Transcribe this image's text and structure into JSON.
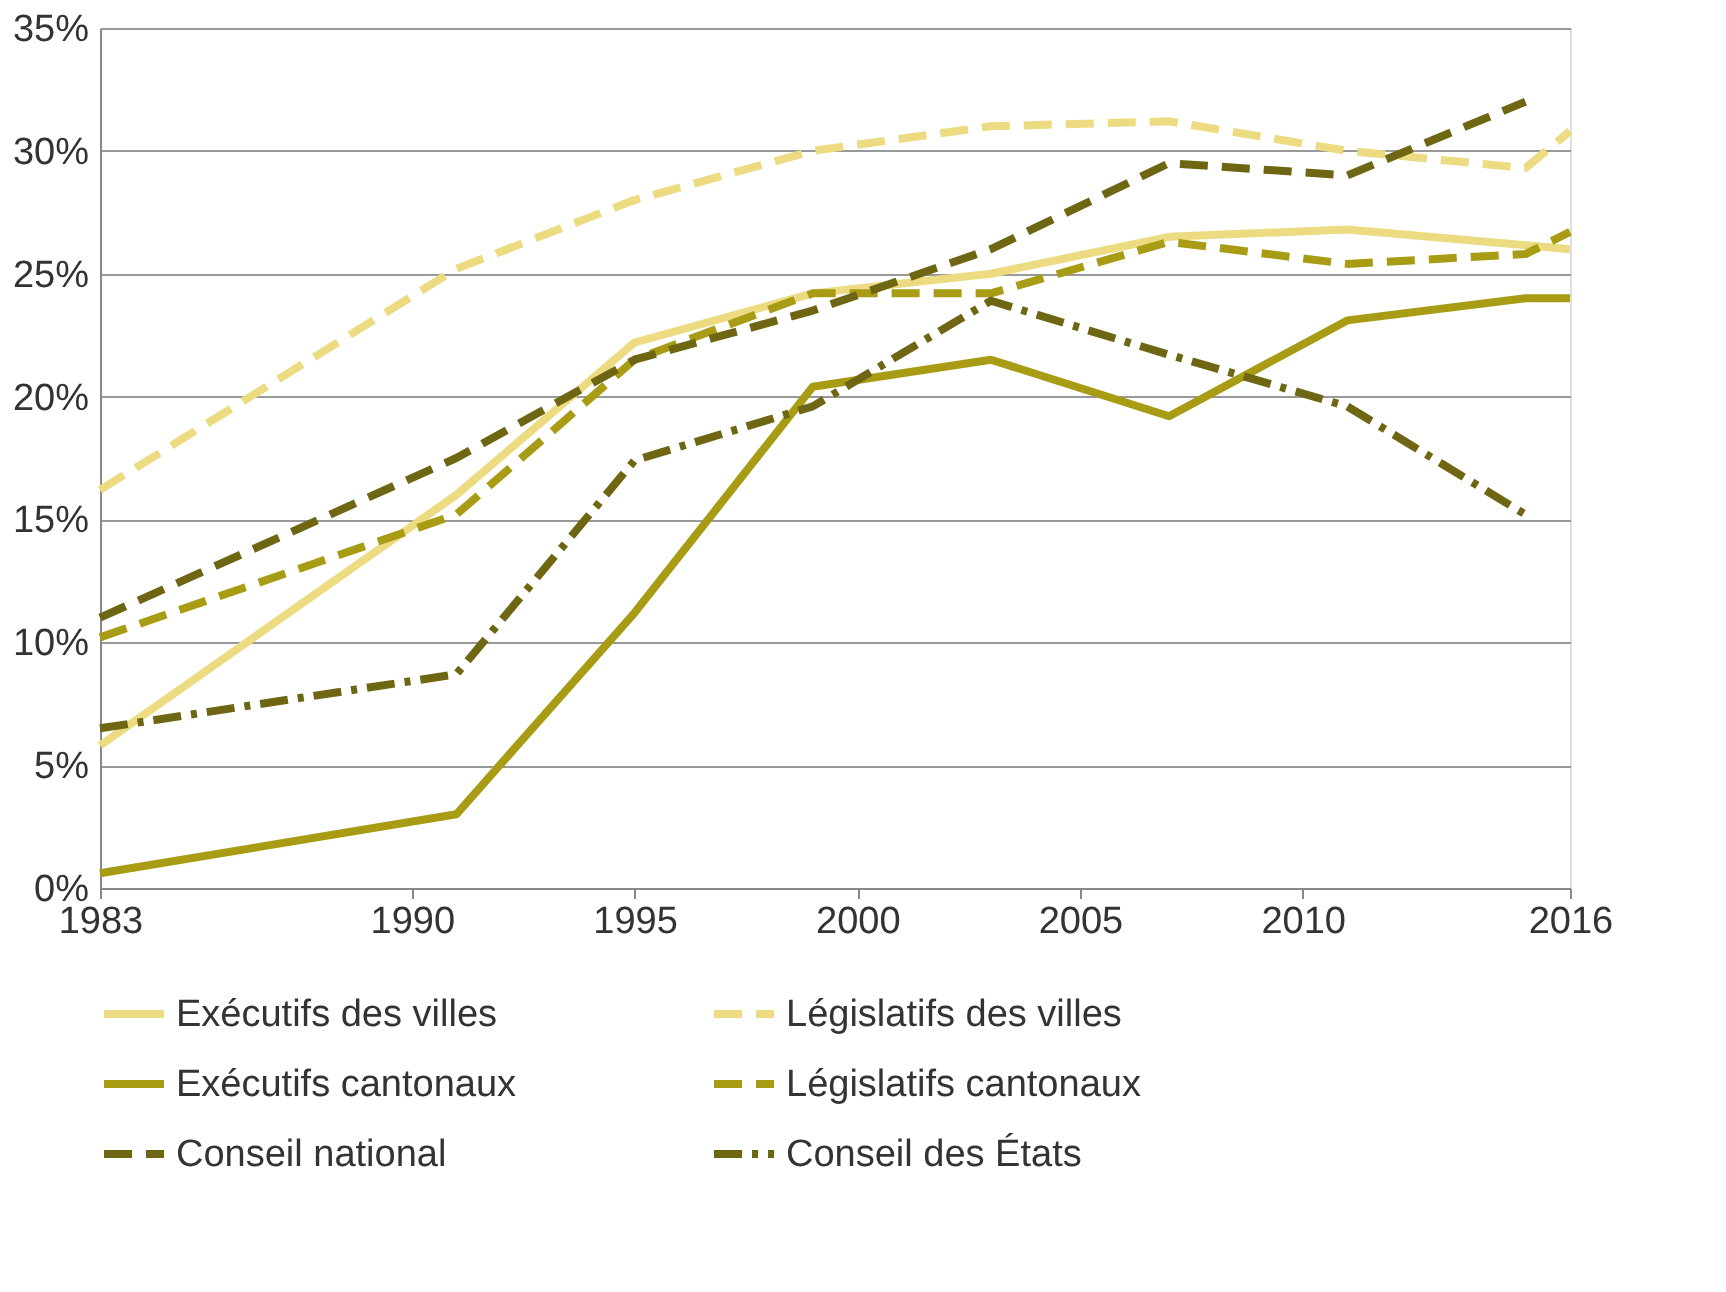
{
  "chart_data": {
    "type": "line",
    "xlim": [
      1983,
      2016
    ],
    "xticks": [
      1983,
      1990,
      1995,
      2000,
      2005,
      2010,
      2016
    ],
    "ylim": [
      0,
      35
    ],
    "yticks": [
      {
        "value": 0,
        "label": "0%"
      },
      {
        "value": 5,
        "label": "5%"
      },
      {
        "value": 10,
        "label": "10%"
      },
      {
        "value": 15,
        "label": "15%"
      },
      {
        "value": 20,
        "label": "20%"
      },
      {
        "value": 25,
        "label": "25%"
      },
      {
        "value": 30,
        "label": "30%"
      },
      {
        "value": 35,
        "label": "35%"
      }
    ],
    "grid": "y",
    "legend": "bottom",
    "marker": "none",
    "series": [
      {
        "name": "Exécutifs des villes",
        "color": "#ecdb80",
        "line_style": "solid",
        "x": [
          1983,
          1991,
          1995,
          1999,
          2003,
          2007,
          2011,
          2016
        ],
        "values": [
          5.8,
          16,
          22.2,
          24.2,
          25,
          26.5,
          26.8,
          26
        ]
      },
      {
        "name": "Législatifs des villes",
        "color": "#ecdb80",
        "line_style": "dashed",
        "x": [
          1983,
          1991,
          1995,
          1999,
          2003,
          2007,
          2011,
          2015,
          2016
        ],
        "values": [
          16.2,
          25.2,
          28,
          30,
          31,
          31.2,
          30,
          29.3,
          30.8
        ]
      },
      {
        "name": "Exécutifs cantonaux",
        "color": "#a89c14",
        "line_style": "solid",
        "x": [
          1983,
          1991,
          1995,
          1999,
          2003,
          2007,
          2011,
          2015,
          2016
        ],
        "values": [
          0.6,
          3,
          11.2,
          20.4,
          21.5,
          19.2,
          23.1,
          24,
          24
        ]
      },
      {
        "name": "Législatifs cantonaux",
        "color": "#a89c14",
        "line_style": "dashed",
        "x": [
          1983,
          1991,
          1995,
          1999,
          2003,
          2007,
          2011,
          2015,
          2016
        ],
        "values": [
          10.2,
          15.2,
          21.5,
          24.2,
          24.2,
          26.3,
          25.4,
          25.8,
          26.7
        ]
      },
      {
        "name": "Conseil national",
        "color": "#6e6612",
        "line_style": "dashed",
        "x": [
          1983,
          1991,
          1995,
          1999,
          2003,
          2007,
          2011,
          2015
        ],
        "values": [
          11,
          17.5,
          21.5,
          23.5,
          26,
          29.5,
          29,
          32
        ]
      },
      {
        "name": "Conseil des États",
        "color": "#6e6612",
        "line_style": "dashdot",
        "x": [
          1983,
          1991,
          1995,
          1999,
          2003,
          2007,
          2011,
          2015
        ],
        "values": [
          6.5,
          8.7,
          17.4,
          19.6,
          23.9,
          21.7,
          19.6,
          15.2
        ]
      }
    ]
  }
}
